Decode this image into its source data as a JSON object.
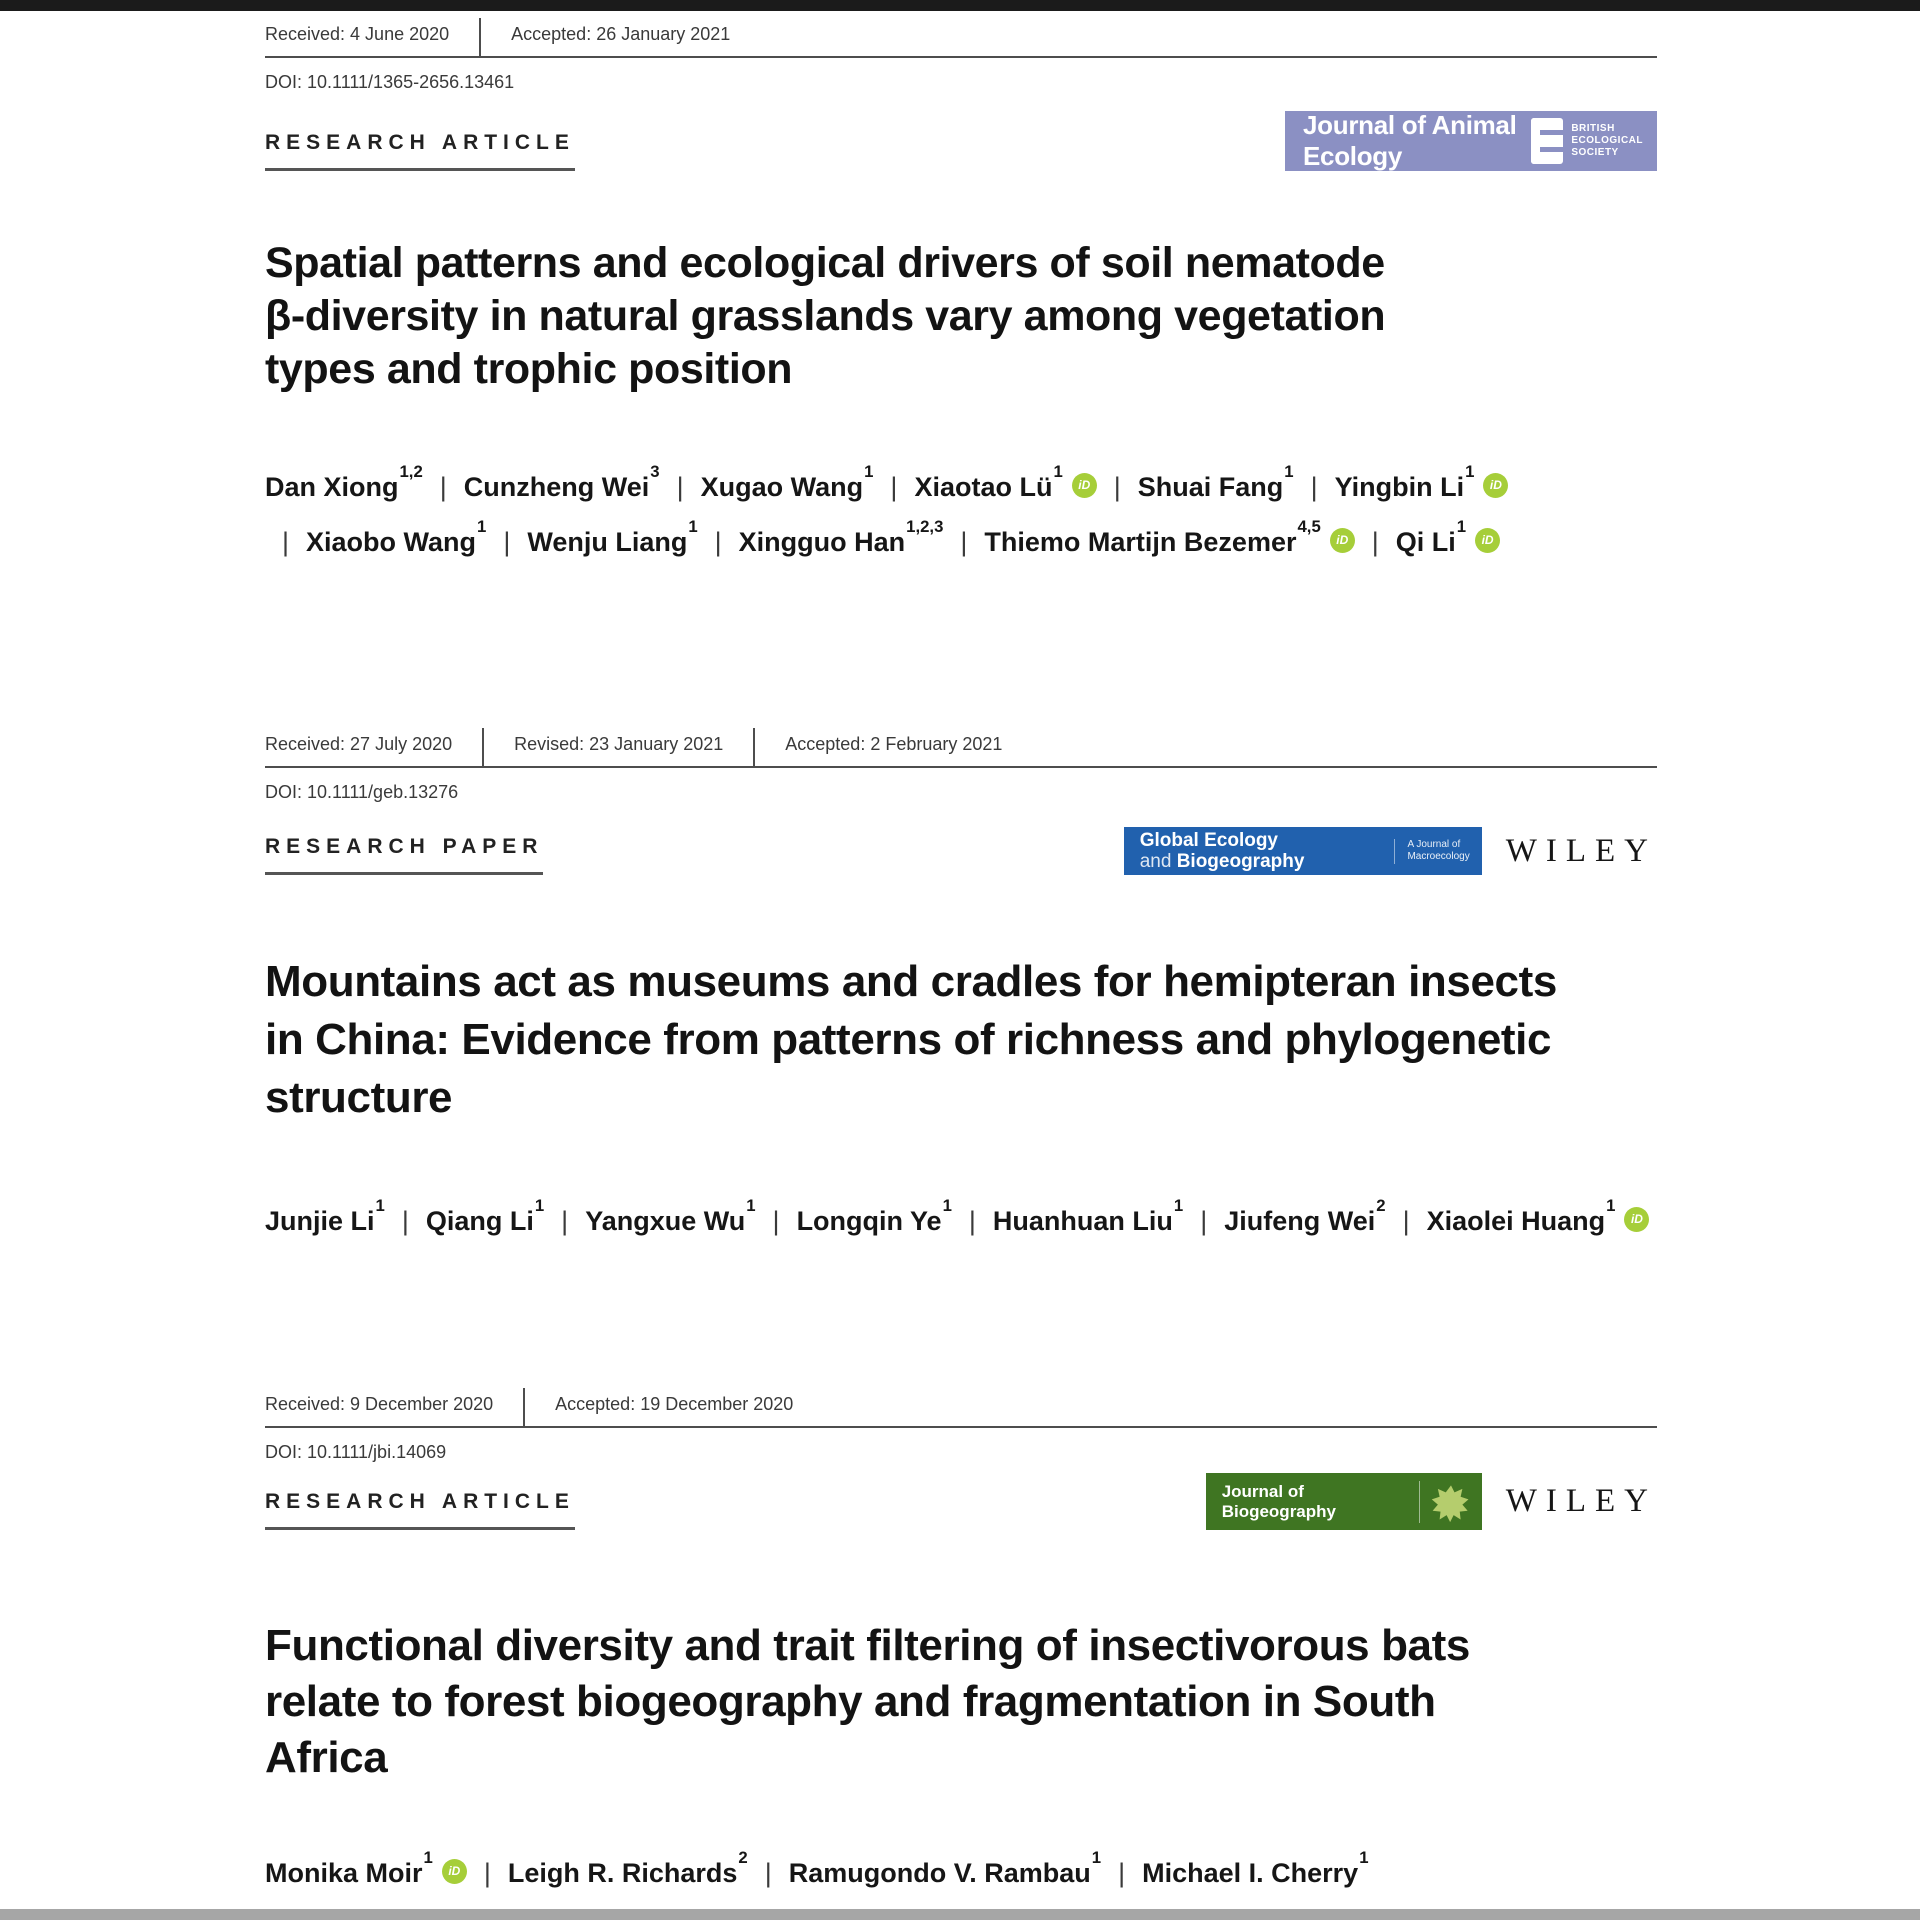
{
  "page": {
    "top_bar_color": "#1b1b1b",
    "bottom_bar_color": "#a6a6a6",
    "background": "#ffffff",
    "orcid_color": "#a6ce39"
  },
  "papers": [
    {
      "meta": [
        "Received: 4 June 2020",
        "Accepted: 26 January 2021"
      ],
      "doi": "DOI: 10.1111/1365-2656.13461",
      "label": "RESEARCH ARTICLE",
      "journal": {
        "name": "Journal of Animal Ecology",
        "bg": "#8b90c3",
        "society_lines": [
          "BRITISH",
          "ECOLOGICAL",
          "SOCIETY"
        ]
      },
      "title_lines": [
        "Spatial patterns and ecological drivers of soil nematode",
        "β-diversity in natural grasslands vary among vegetation",
        "types and trophic position"
      ],
      "authors": [
        {
          "name": "Dan Xiong",
          "sup": "1,2",
          "orcid": false
        },
        {
          "name": "Cunzheng Wei",
          "sup": "3",
          "orcid": false
        },
        {
          "name": "Xugao Wang",
          "sup": "1",
          "orcid": false
        },
        {
          "name": "Xiaotao Lü",
          "sup": "1",
          "orcid": true
        },
        {
          "name": "Shuai Fang",
          "sup": "1",
          "orcid": false
        },
        {
          "name": "Yingbin Li",
          "sup": "1",
          "orcid": true
        },
        {
          "name": "Xiaobo Wang",
          "sup": "1",
          "orcid": false
        },
        {
          "name": "Wenju Liang",
          "sup": "1",
          "orcid": false
        },
        {
          "name": "Xingguo Han",
          "sup": "1,2,3",
          "orcid": false
        },
        {
          "name": "Thiemo Martijn Bezemer",
          "sup": "4,5",
          "orcid": true
        },
        {
          "name": "Qi Li",
          "sup": "1",
          "orcid": true
        }
      ]
    },
    {
      "meta": [
        "Received: 27 July 2020",
        "Revised: 23 January 2021",
        "Accepted: 2 February 2021"
      ],
      "doi": "DOI: 10.1111/geb.13276",
      "label": "RESEARCH PAPER",
      "journal": {
        "name_line1": "Global Ecology",
        "name_line2_prefix": "and ",
        "name_line2": "Biogeography",
        "bg": "#2161ae",
        "subtitle_lines": [
          "A Journal of",
          "Macroecology"
        ]
      },
      "wiley": "WILEY",
      "title_lines": [
        "Mountains act as museums and cradles for hemipteran insects",
        "in China: Evidence from patterns of richness and phylogenetic",
        "structure"
      ],
      "authors": [
        {
          "name": "Junjie Li",
          "sup": "1",
          "orcid": false
        },
        {
          "name": "Qiang Li",
          "sup": "1",
          "orcid": false
        },
        {
          "name": "Yangxue Wu",
          "sup": "1",
          "orcid": false
        },
        {
          "name": "Longqin Ye",
          "sup": "1",
          "orcid": false
        },
        {
          "name": "Huanhuan Liu",
          "sup": "1",
          "orcid": false
        },
        {
          "name": "Jiufeng Wei",
          "sup": "2",
          "orcid": false
        },
        {
          "name": "Xiaolei Huang",
          "sup": "1",
          "orcid": true
        }
      ]
    },
    {
      "meta": [
        "Received: 9 December 2020",
        "Accepted: 19 December 2020"
      ],
      "doi": "DOI: 10.1111/jbi.14069",
      "label": "RESEARCH ARTICLE",
      "journal": {
        "name_line1": "Journal of",
        "name_line2": "Biogeography",
        "bg": "#3f7522",
        "leaf_color": "#b5cd6d"
      },
      "wiley": "WILEY",
      "title_lines": [
        "Functional diversity and trait filtering of insectivorous bats",
        "relate to forest biogeography and fragmentation in South",
        "Africa"
      ],
      "authors": [
        {
          "name": "Monika Moir",
          "sup": "1",
          "orcid": true
        },
        {
          "name": "Leigh R. Richards",
          "sup": "2",
          "orcid": false
        },
        {
          "name": "Ramugondo V. Rambau",
          "sup": "1",
          "orcid": false
        },
        {
          "name": "Michael I. Cherry",
          "sup": "1",
          "orcid": false
        }
      ]
    }
  ]
}
